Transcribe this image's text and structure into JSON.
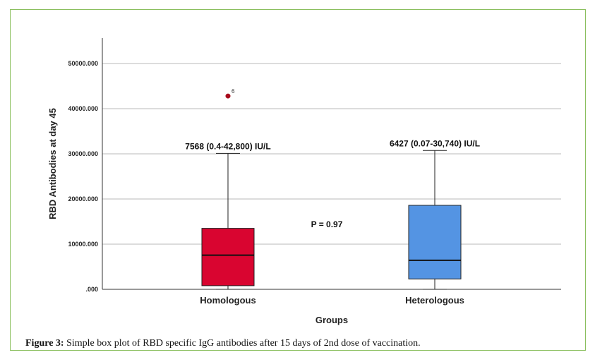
{
  "caption": {
    "label": "Figure 3:",
    "text": " Simple box plot of RBD specific IgG antibodies after 15 days of 2nd dose of vaccination."
  },
  "chart_data": {
    "type": "box",
    "xlabel": "Groups",
    "ylabel": "RBD Antibodies at day 45",
    "ylim": [
      0,
      55000
    ],
    "yticks": [
      0,
      10000,
      20000,
      30000,
      40000,
      50000
    ],
    "ytick_labels": [
      ".000",
      "10000.000",
      "20000.000",
      "30000.000",
      "40000.000",
      "50000.000"
    ],
    "grid": true,
    "groups": [
      {
        "name": "Homologous",
        "color": "#d90530",
        "min": 0,
        "q1": 800,
        "median": 7568,
        "q3": 13500,
        "whisker_high": 30100,
        "outliers": [
          {
            "value": 42800,
            "label": "6"
          }
        ],
        "annotation": "7568 (0.4-42,800) IU/L"
      },
      {
        "name": "Heterologous",
        "color": "#5494e3",
        "min": 0,
        "q1": 2300,
        "median": 6427,
        "q3": 18600,
        "whisker_high": 30740,
        "outliers": [],
        "annotation": "6427 (0.07-30,740) IU/L"
      }
    ],
    "pvalue_text": "P = 0.97"
  }
}
